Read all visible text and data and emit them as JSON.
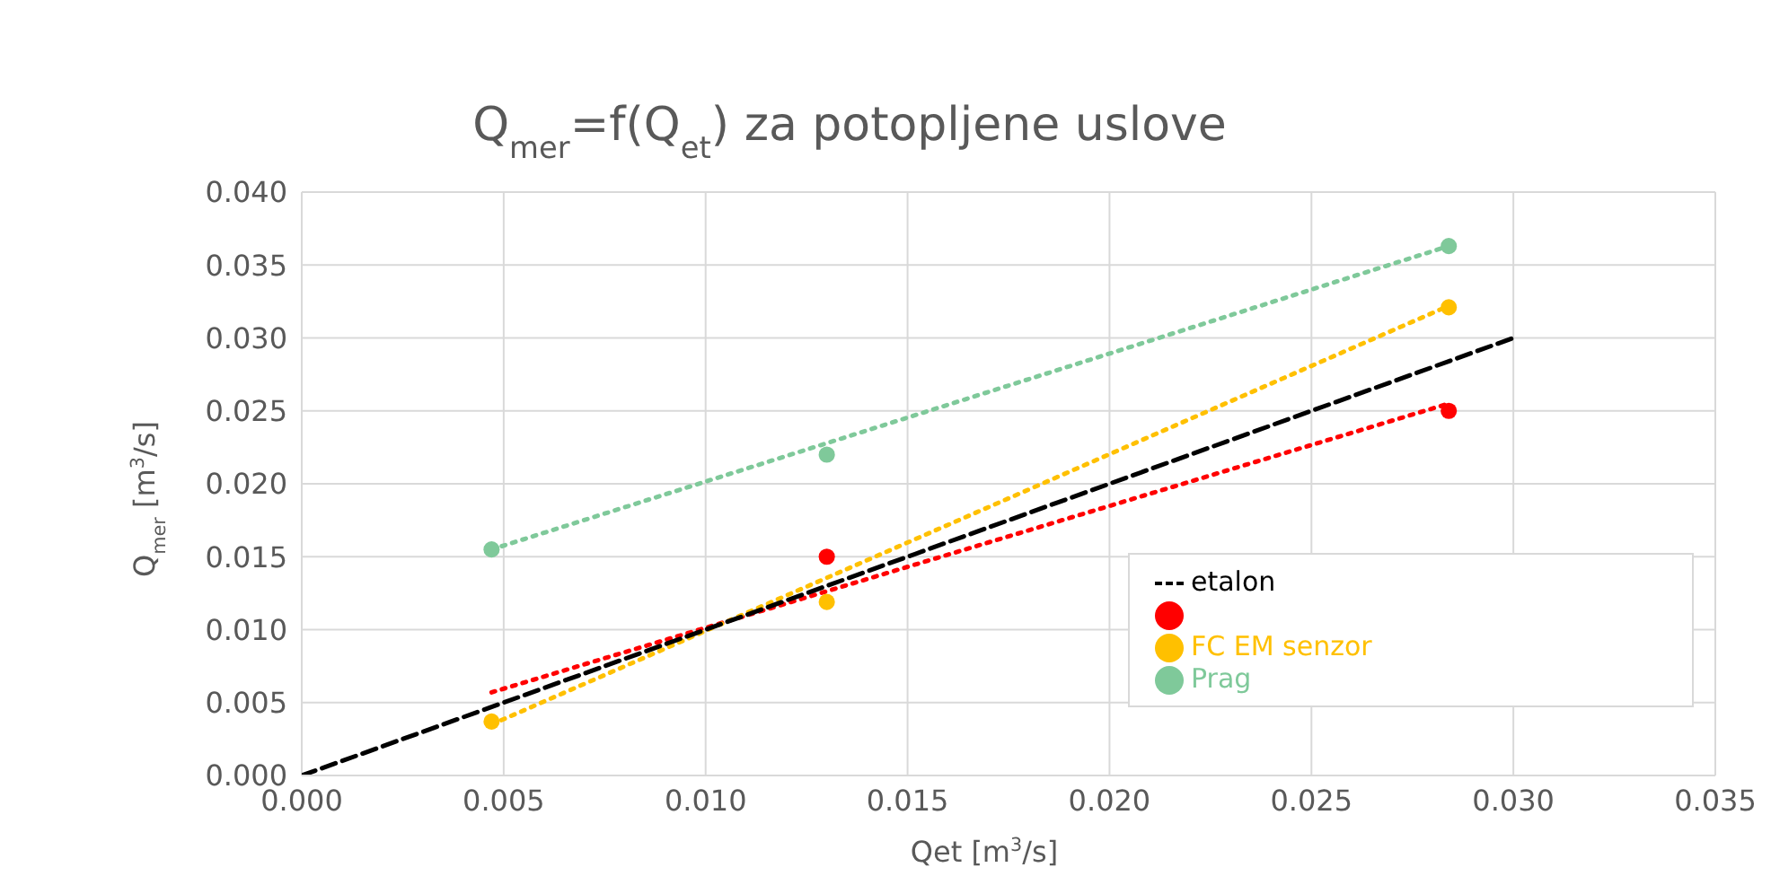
{
  "chart_data": {
    "type": "scatter",
    "title": "Q$_{mer}$=f(Q$_{et}$) za potopljene uslove",
    "xlabel": "Qet [m$^{3}$/s]",
    "ylabel": "Q$_{mer}$ [m$^{3}$/s]",
    "xlim": [
      0,
      0.035
    ],
    "xticks": [
      {
        "value": 0,
        "label": "0.000"
      },
      {
        "value": 0.005,
        "label": "0.005"
      },
      {
        "value": 0.01,
        "label": "0.010"
      },
      {
        "value": 0.015,
        "label": "0.015"
      },
      {
        "value": 0.02,
        "label": "0.020"
      },
      {
        "value": 0.025,
        "label": "0.025"
      },
      {
        "value": 0.03,
        "label": "0.030"
      },
      {
        "value": 0.035,
        "label": "0.035"
      }
    ],
    "ylim": [
      0,
      0.04
    ],
    "yticks": [
      {
        "value": 0,
        "label": "0.000"
      },
      {
        "value": 0.005,
        "label": "0.005"
      },
      {
        "value": 0.01,
        "label": "0.010"
      },
      {
        "value": 0.015,
        "label": "0.015"
      },
      {
        "value": 0.02,
        "label": "0.020"
      },
      {
        "value": 0.025,
        "label": "0.025"
      },
      {
        "value": 0.03,
        "label": "0.030"
      },
      {
        "value": 0.035,
        "label": "0.035"
      },
      {
        "value": 0.04,
        "label": "0.040"
      }
    ],
    "grid": true,
    "legend": "bottom right",
    "series": [
      {
        "type": "line",
        "color": "#ff0000",
        "x": [
          0.0047,
          0.0284
        ],
        "values": [
          0.0057,
          0.0255
        ],
        "line_style": "dotted",
        "marker": "none"
      },
      {
        "type": "line",
        "color": "#ffc000",
        "x": [
          0.0047,
          0.0284
        ],
        "values": [
          0.0035,
          0.0322
        ],
        "line_style": "dotted",
        "marker": "none"
      },
      {
        "type": "line",
        "color": "#7fc99a",
        "x": [
          0.0047,
          0.0284
        ],
        "values": [
          0.0155,
          0.0363
        ],
        "line_style": "dotted",
        "marker": "none"
      },
      {
        "type": "line",
        "name": "etalon",
        "color": "#000000",
        "x": [
          0,
          0.03
        ],
        "values": [
          0,
          0.03
        ],
        "line_style": "dashed",
        "marker": "none"
      },
      {
        "color": "#ff0000",
        "x": [
          0.013,
          0.0284
        ],
        "values": [
          0.015,
          0.025
        ],
        "marker": "circle"
      },
      {
        "name": "FC EM senzor",
        "color": "#ffc000",
        "x": [
          0.0047,
          0.013,
          0.0284
        ],
        "values": [
          0.0037,
          0.0119,
          0.0321
        ],
        "marker": "circle"
      },
      {
        "name": "Prag",
        "color": "#7fc99a",
        "x": [
          0.0047,
          0.013,
          0.0284
        ],
        "values": [
          0.0155,
          0.022,
          0.0363
        ],
        "marker": "circle"
      }
    ]
  }
}
